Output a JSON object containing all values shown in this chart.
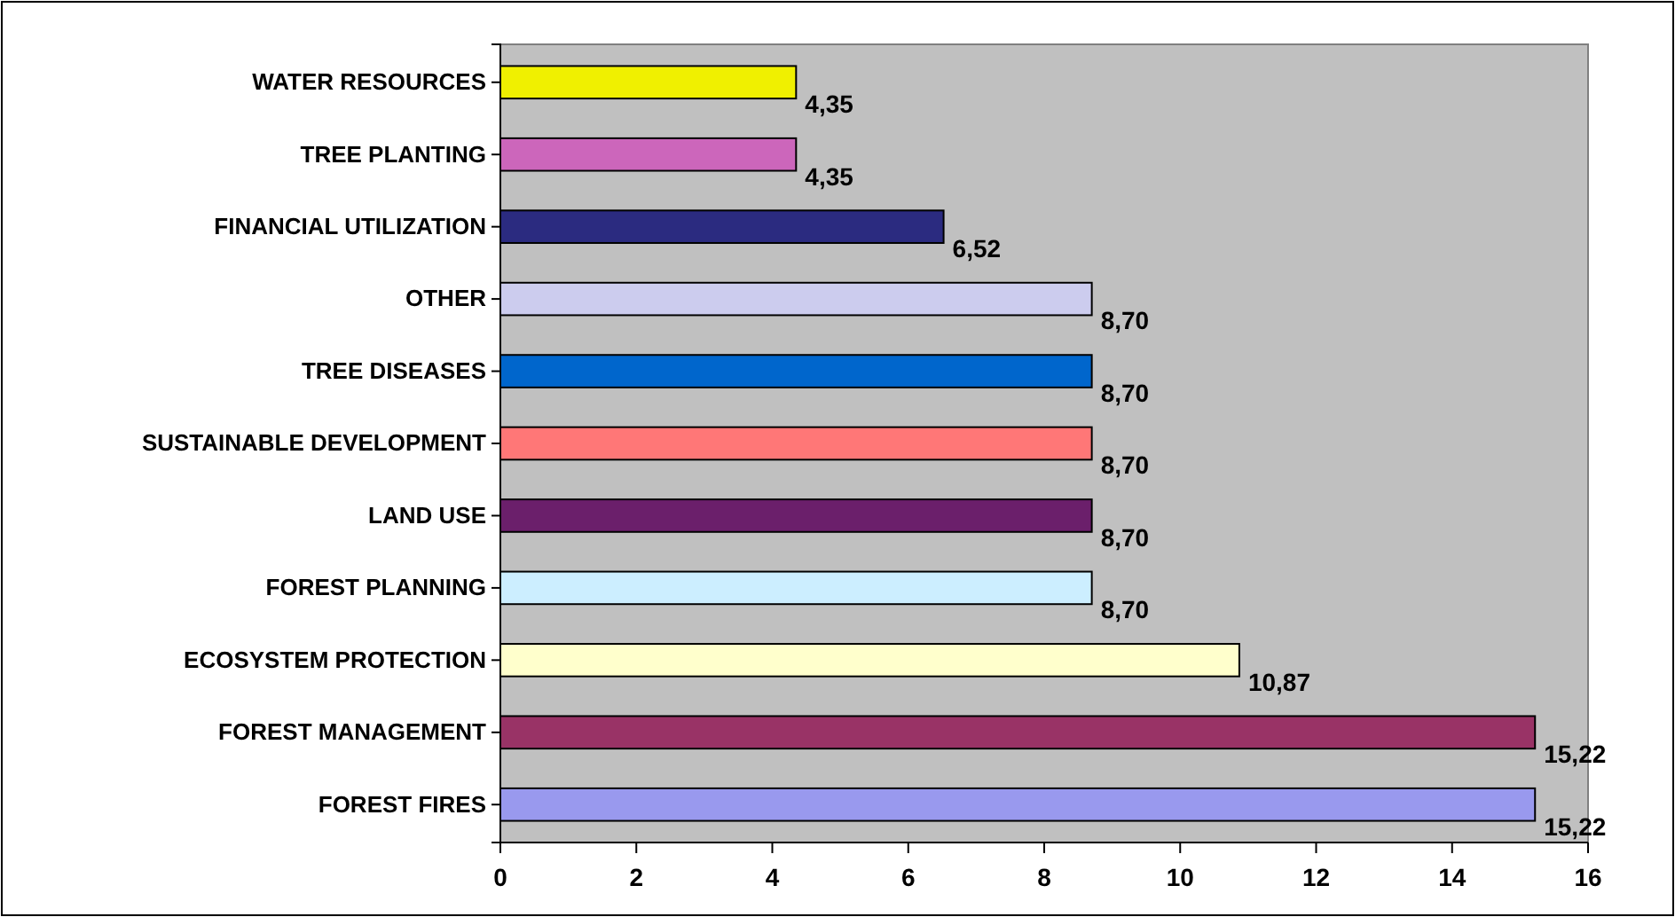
{
  "chart_data": {
    "type": "bar",
    "orientation": "horizontal",
    "categories": [
      "WATER RESOURCES",
      "TREE PLANTING",
      "FINANCIAL UTILIZATION",
      "OTHER",
      "TREE DISEASES",
      "SUSTAINABLE DEVELOPMENT",
      "LAND USE",
      "FOREST PLANNING",
      "ECOSYSTEM PROTECTION",
      "FOREST MANAGEMENT",
      "FOREST FIRES"
    ],
    "values": [
      4.35,
      4.35,
      6.52,
      8.7,
      8.7,
      8.7,
      8.7,
      8.7,
      10.87,
      15.22,
      15.22
    ],
    "value_labels": [
      "4,35",
      "4,35",
      "6,52",
      "8,70",
      "8,70",
      "8,70",
      "8,70",
      "8,70",
      "10,87",
      "15,22",
      "15,22"
    ],
    "colors": [
      "#f0f000",
      "#cc66bb",
      "#2b2b80",
      "#ccccee",
      "#0066cc",
      "#ff7777",
      "#6b1f6b",
      "#cceeff",
      "#ffffcc",
      "#993366",
      "#9999ee"
    ],
    "xlim": [
      0,
      16
    ],
    "xticks": [
      0,
      2,
      4,
      6,
      8,
      10,
      12,
      14,
      16
    ],
    "grid": false
  }
}
